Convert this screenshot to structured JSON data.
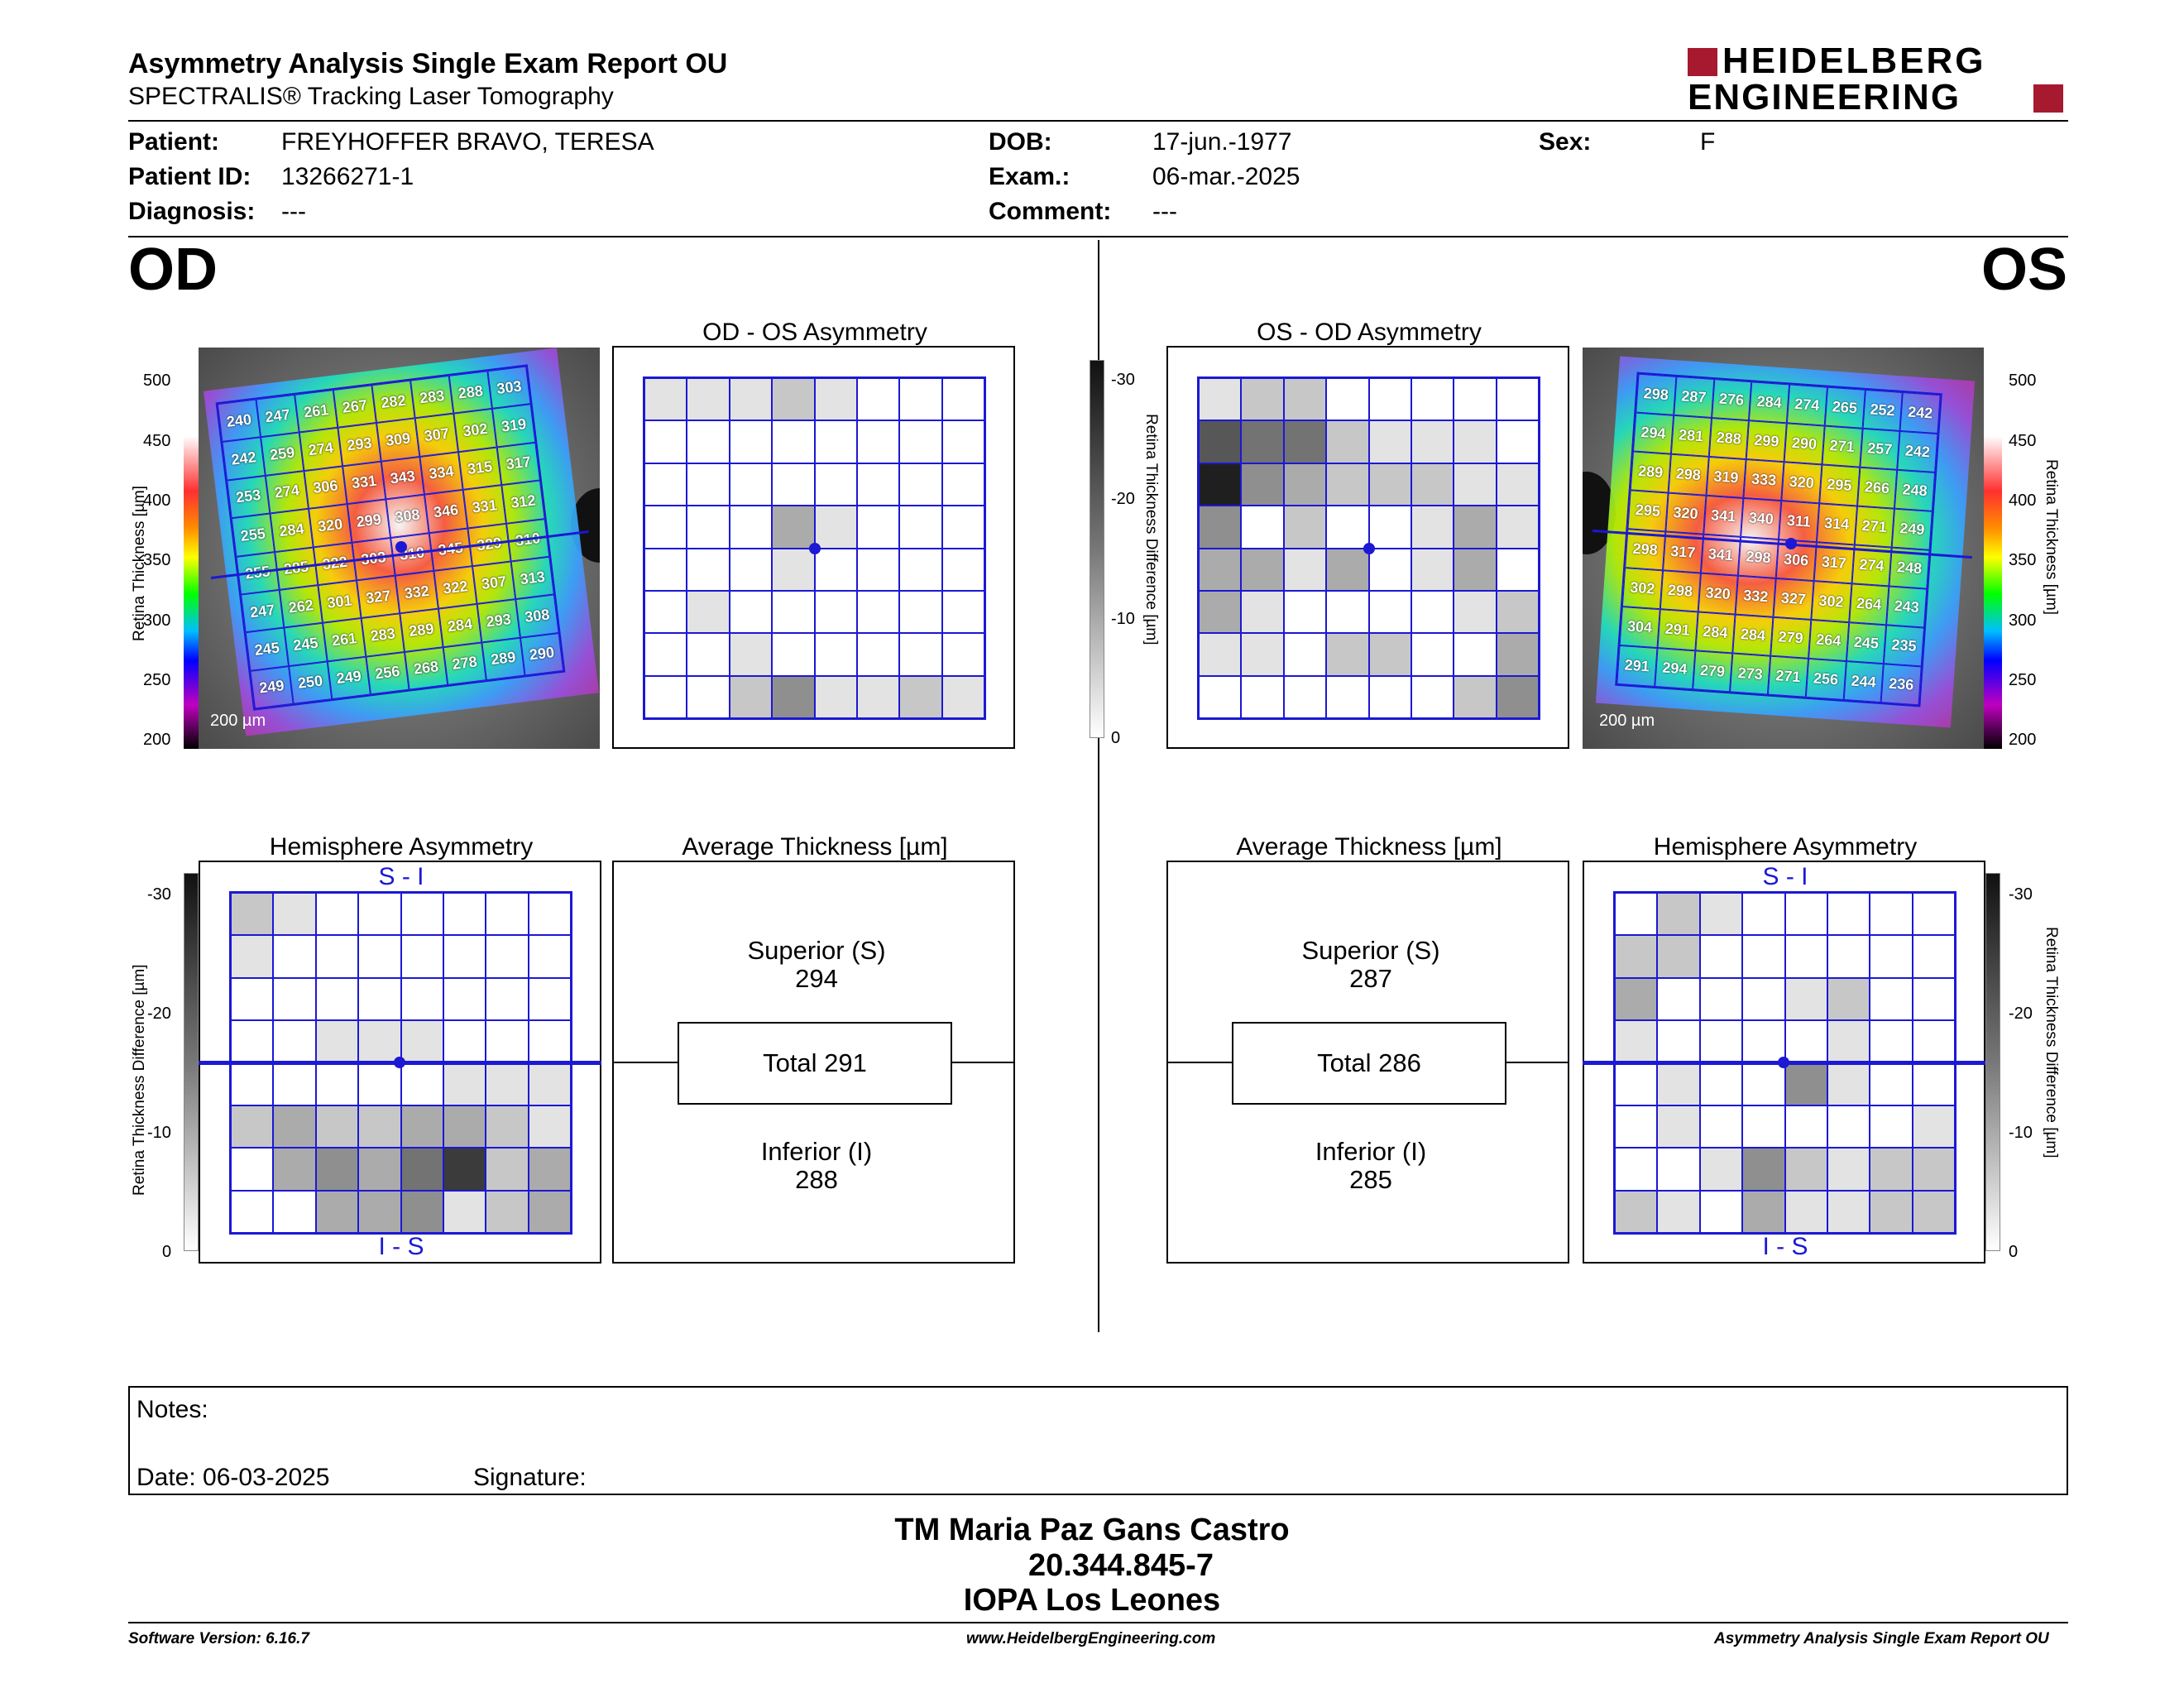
{
  "header": {
    "title": "Asymmetry Analysis Single Exam Report OU",
    "subtitle": "SPECTRALIS® Tracking Laser Tomography",
    "logo_line1": "HEIDELBERG",
    "logo_line2": "ENGINEERING",
    "brand_color": "#a6192e"
  },
  "patient": {
    "patient_label": "Patient:",
    "patient_value": "FREYHOFFER BRAVO, TERESA",
    "dob_label": "DOB:",
    "dob_value": "17-jun.-1977",
    "sex_label": "Sex:",
    "sex_value": "F",
    "id_label": "Patient ID:",
    "id_value": "13266271-1",
    "exam_label": "Exam.:",
    "exam_value": "06-mar.-2025",
    "diag_label": "Diagnosis:",
    "diag_value": "---",
    "comment_label": "Comment:",
    "comment_value": "---"
  },
  "od": {
    "eye": "OD",
    "scale_bar_label": "200 µm",
    "thickness_axis_label": "Retina Thickness [µm]",
    "thickness_ticks": [
      "500",
      "450",
      "400",
      "350",
      "300",
      "250",
      "200"
    ],
    "thickness_grid": [
      [
        240,
        247,
        261,
        267,
        282,
        283,
        288,
        303
      ],
      [
        242,
        259,
        274,
        293,
        309,
        307,
        302,
        319
      ],
      [
        253,
        274,
        306,
        331,
        343,
        334,
        315,
        317
      ],
      [
        255,
        284,
        320,
        299,
        308,
        346,
        331,
        312
      ],
      [
        255,
        285,
        322,
        303,
        310,
        345,
        329,
        310
      ],
      [
        247,
        262,
        301,
        327,
        332,
        322,
        307,
        313
      ],
      [
        245,
        245,
        261,
        283,
        289,
        284,
        293,
        308
      ],
      [
        249,
        250,
        249,
        256,
        268,
        278,
        289,
        290
      ]
    ],
    "asym_title": "OD - OS Asymmetry",
    "asym_levels": [
      [
        1,
        1,
        1,
        2,
        1,
        0,
        0,
        0
      ],
      [
        0,
        0,
        0,
        0,
        0,
        0,
        0,
        0
      ],
      [
        0,
        0,
        0,
        0,
        0,
        0,
        0,
        0
      ],
      [
        0,
        0,
        0,
        3,
        1,
        0,
        0,
        0
      ],
      [
        0,
        0,
        0,
        1,
        0,
        0,
        0,
        0
      ],
      [
        0,
        1,
        0,
        0,
        0,
        0,
        0,
        0
      ],
      [
        0,
        0,
        1,
        0,
        0,
        0,
        0,
        0
      ],
      [
        0,
        0,
        2,
        4,
        1,
        1,
        2,
        1
      ]
    ],
    "diff_axis_label": "Retina Thickness Difference [µm]",
    "diff_ticks": [
      "-30",
      "-20",
      "-10",
      "0"
    ],
    "hemi_title": "Hemisphere Asymmetry",
    "hemi_top": "S - I",
    "hemi_bottom": "I - S",
    "hemi_levels": [
      [
        2,
        1,
        0,
        0,
        0,
        0,
        0,
        0
      ],
      [
        1,
        0,
        0,
        0,
        0,
        0,
        0,
        0
      ],
      [
        0,
        0,
        0,
        0,
        0,
        0,
        0,
        0
      ],
      [
        0,
        0,
        1,
        1,
        1,
        0,
        0,
        0
      ],
      [
        0,
        0,
        0,
        0,
        0,
        1,
        1,
        1
      ],
      [
        2,
        3,
        2,
        2,
        3,
        3,
        2,
        1
      ],
      [
        0,
        3,
        4,
        3,
        5,
        7,
        2,
        3
      ],
      [
        0,
        0,
        3,
        3,
        4,
        1,
        2,
        3
      ]
    ],
    "avg_title": "Average Thickness [µm]",
    "superior_label": "Superior (S)",
    "superior_value": "294",
    "total_label": "Total 291",
    "inferior_label": "Inferior (I)",
    "inferior_value": "288"
  },
  "os": {
    "eye": "OS",
    "scale_bar_label": "200 µm",
    "thickness_axis_label": "Retina Thickness [µm]",
    "thickness_ticks": [
      "500",
      "450",
      "400",
      "350",
      "300",
      "250",
      "200"
    ],
    "thickness_grid": [
      [
        298,
        287,
        276,
        284,
        274,
        265,
        252,
        242
      ],
      [
        294,
        281,
        288,
        299,
        290,
        271,
        257,
        242
      ],
      [
        289,
        298,
        319,
        333,
        320,
        295,
        266,
        248
      ],
      [
        295,
        320,
        341,
        340,
        311,
        314,
        271,
        249
      ],
      [
        298,
        317,
        341,
        298,
        306,
        317,
        274,
        248
      ],
      [
        302,
        298,
        320,
        332,
        327,
        302,
        264,
        243
      ],
      [
        304,
        291,
        284,
        284,
        279,
        264,
        245,
        235
      ],
      [
        291,
        294,
        279,
        273,
        271,
        256,
        244,
        236
      ]
    ],
    "asym_title": "OS - OD Asymmetry",
    "asym_levels": [
      [
        1,
        2,
        2,
        0,
        0,
        0,
        0,
        0
      ],
      [
        6,
        5,
        5,
        2,
        1,
        1,
        1,
        0
      ],
      [
        8,
        4,
        3,
        2,
        2,
        2,
        1,
        1
      ],
      [
        4,
        0,
        2,
        0,
        0,
        1,
        3,
        1
      ],
      [
        3,
        3,
        1,
        3,
        0,
        1,
        3,
        0
      ],
      [
        3,
        1,
        0,
        0,
        0,
        0,
        1,
        2
      ],
      [
        1,
        1,
        0,
        2,
        2,
        0,
        0,
        3
      ],
      [
        0,
        0,
        0,
        0,
        0,
        0,
        2,
        4
      ]
    ],
    "diff_axis_label": "Retina Thickness Difference [µm]",
    "diff_ticks": [
      "-30",
      "-20",
      "-10",
      "0"
    ],
    "hemi_title": "Hemisphere Asymmetry",
    "hemi_top": "S - I",
    "hemi_bottom": "I - S",
    "hemi_levels": [
      [
        0,
        2,
        1,
        0,
        0,
        0,
        0,
        0
      ],
      [
        2,
        2,
        0,
        0,
        0,
        0,
        0,
        0
      ],
      [
        3,
        0,
        0,
        0,
        1,
        2,
        0,
        0
      ],
      [
        1,
        0,
        0,
        0,
        0,
        1,
        0,
        0
      ],
      [
        0,
        1,
        0,
        0,
        4,
        1,
        0,
        0
      ],
      [
        0,
        1,
        0,
        0,
        0,
        0,
        0,
        1
      ],
      [
        0,
        0,
        1,
        4,
        2,
        1,
        2,
        2
      ],
      [
        2,
        1,
        0,
        3,
        1,
        1,
        2,
        2
      ]
    ],
    "avg_title": "Average Thickness [µm]",
    "superior_label": "Superior (S)",
    "superior_value": "287",
    "total_label": "Total 286",
    "inferior_label": "Inferior (I)",
    "inferior_value": "285"
  },
  "notes": {
    "notes_label": "Notes:",
    "date_label": "Date: 06-03-2025",
    "signature_label": "Signature:"
  },
  "stamp": {
    "line1": "TM Maria Paz Gans Castro",
    "line2": "20.344.845-7",
    "line3": "IOPA Los Leones"
  },
  "footer": {
    "left": "Software Version: 6.16.7",
    "center": "www.HeidelbergEngineering.com",
    "right": "Asymmetry Analysis Single Exam Report OU"
  }
}
